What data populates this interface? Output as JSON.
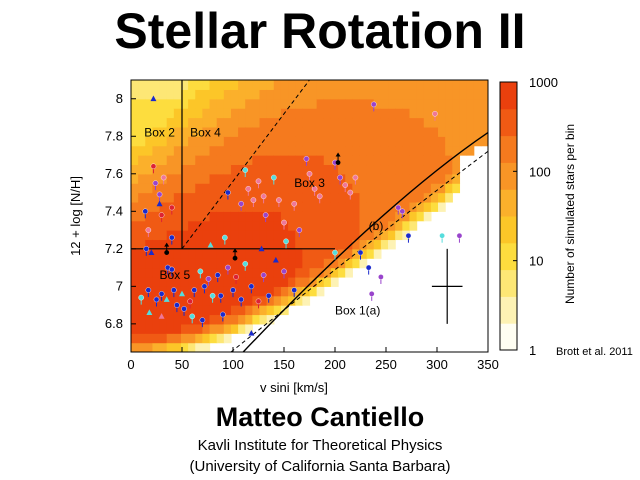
{
  "slide": {
    "title": "Stellar Rotation II",
    "author": "Matteo Cantiello",
    "institute": "Kavli Institute for Theoretical Physics",
    "affiliation": "(University of California Santa Barbara)",
    "credit": "Brott et al.  2011"
  },
  "chart_data": {
    "type": "heatmap",
    "title": "",
    "xlabel": "v sini [km/s]",
    "ylabel": "12 + log [N/H]",
    "xlim": [
      0,
      350
    ],
    "ylim": [
      6.65,
      8.1
    ],
    "x_ticks": [
      "0",
      "50",
      "100",
      "150",
      "200",
      "250",
      "300",
      "350"
    ],
    "y_ticks": [
      "6.8",
      "7",
      "7.2",
      "7.4",
      "7.6",
      "7.8",
      "8"
    ],
    "colorbar": {
      "label": "Number of simulated stars per bin",
      "scale": "log",
      "ticks": [
        "1",
        "10",
        "100",
        "1000"
      ],
      "colors": [
        "#fffef2",
        "#fdf2b4",
        "#fde775",
        "#fddd3e",
        "#fcc628",
        "#fbb02b",
        "#f89526",
        "#f57a1e",
        "#f05a14",
        "#ea400d"
      ]
    },
    "boxes": [
      {
        "label": "Box 1(a)",
        "x": 200,
        "y": 6.85
      },
      {
        "label": "Box 2",
        "x": 13,
        "y": 7.8
      },
      {
        "label": "Box 3",
        "x": 160,
        "y": 7.53
      },
      {
        "label": "Box 4",
        "x": 58,
        "y": 7.8
      },
      {
        "label": "Box 5",
        "x": 28,
        "y": 7.04
      }
    ],
    "annotation": {
      "label": "(b)",
      "x": 233,
      "y": 7.3
    },
    "error_bar": {
      "x": 310,
      "y": 7.0,
      "dx": 15,
      "dy": 0.2
    },
    "colors": {
      "blue": "#1a2acc",
      "purple": "#9944cc",
      "cyan": "#55dddd",
      "red": "#dd2233",
      "pink": "#ee7799"
    },
    "stars": [
      {
        "v": 22,
        "n": 7.64,
        "c": "red"
      },
      {
        "v": 32,
        "n": 7.58,
        "c": "pink"
      },
      {
        "v": 24,
        "n": 7.55,
        "c": "purple"
      },
      {
        "v": 28,
        "n": 7.49,
        "c": "purple"
      },
      {
        "v": 14,
        "n": 7.4,
        "c": "blue"
      },
      {
        "v": 30,
        "n": 7.38,
        "c": "red"
      },
      {
        "v": 40,
        "n": 7.42,
        "c": "red"
      },
      {
        "v": 17,
        "n": 7.3,
        "c": "pink"
      },
      {
        "v": 40,
        "n": 7.26,
        "c": "blue"
      },
      {
        "v": 15,
        "n": 7.2,
        "c": "blue"
      },
      {
        "v": 36,
        "n": 7.1,
        "c": "blue"
      },
      {
        "v": 40,
        "n": 7.09,
        "c": "blue"
      },
      {
        "v": 17,
        "n": 6.98,
        "c": "blue"
      },
      {
        "v": 10,
        "n": 6.94,
        "c": "cyan"
      },
      {
        "v": 25,
        "n": 6.93,
        "c": "blue"
      },
      {
        "v": 30,
        "n": 6.96,
        "c": "blue"
      },
      {
        "v": 42,
        "n": 6.98,
        "c": "blue"
      },
      {
        "v": 45,
        "n": 6.9,
        "c": "blue"
      },
      {
        "v": 52,
        "n": 6.88,
        "c": "blue"
      },
      {
        "v": 58,
        "n": 6.92,
        "c": "red"
      },
      {
        "v": 62,
        "n": 6.98,
        "c": "blue"
      },
      {
        "v": 68,
        "n": 7.08,
        "c": "cyan"
      },
      {
        "v": 72,
        "n": 7.0,
        "c": "blue"
      },
      {
        "v": 76,
        "n": 7.04,
        "c": "purple"
      },
      {
        "v": 80,
        "n": 6.95,
        "c": "cyan"
      },
      {
        "v": 85,
        "n": 7.06,
        "c": "blue"
      },
      {
        "v": 88,
        "n": 6.95,
        "c": "blue"
      },
      {
        "v": 95,
        "n": 7.1,
        "c": "purple"
      },
      {
        "v": 100,
        "n": 6.98,
        "c": "blue"
      },
      {
        "v": 103,
        "n": 7.05,
        "c": "red"
      },
      {
        "v": 108,
        "n": 6.93,
        "c": "blue"
      },
      {
        "v": 112,
        "n": 7.12,
        "c": "cyan"
      },
      {
        "v": 118,
        "n": 7.0,
        "c": "blue"
      },
      {
        "v": 125,
        "n": 6.92,
        "c": "red"
      },
      {
        "v": 130,
        "n": 7.06,
        "c": "purple"
      },
      {
        "v": 135,
        "n": 6.95,
        "c": "blue"
      },
      {
        "v": 60,
        "n": 6.84,
        "c": "cyan"
      },
      {
        "v": 70,
        "n": 6.82,
        "c": "blue"
      },
      {
        "v": 90,
        "n": 6.85,
        "c": "blue"
      },
      {
        "v": 95,
        "n": 7.5,
        "c": "blue"
      },
      {
        "v": 108,
        "n": 7.44,
        "c": "purple"
      },
      {
        "v": 115,
        "n": 7.52,
        "c": "pink"
      },
      {
        "v": 120,
        "n": 7.46,
        "c": "pink"
      },
      {
        "v": 125,
        "n": 7.56,
        "c": "pink"
      },
      {
        "v": 130,
        "n": 7.48,
        "c": "pink"
      },
      {
        "v": 132,
        "n": 7.38,
        "c": "purple"
      },
      {
        "v": 140,
        "n": 7.58,
        "c": "cyan"
      },
      {
        "v": 145,
        "n": 7.46,
        "c": "pink"
      },
      {
        "v": 150,
        "n": 7.34,
        "c": "pink"
      },
      {
        "v": 152,
        "n": 7.24,
        "c": "cyan"
      },
      {
        "v": 160,
        "n": 7.44,
        "c": "pink"
      },
      {
        "v": 165,
        "n": 7.3,
        "c": "purple"
      },
      {
        "v": 172,
        "n": 7.68,
        "c": "purple"
      },
      {
        "v": 175,
        "n": 7.6,
        "c": "pink"
      },
      {
        "v": 180,
        "n": 7.52,
        "c": "pink"
      },
      {
        "v": 185,
        "n": 7.48,
        "c": "pink"
      },
      {
        "v": 200,
        "n": 7.66,
        "c": "purple"
      },
      {
        "v": 205,
        "n": 7.58,
        "c": "purple"
      },
      {
        "v": 210,
        "n": 7.54,
        "c": "pink"
      },
      {
        "v": 215,
        "n": 7.5,
        "c": "pink"
      },
      {
        "v": 220,
        "n": 7.58,
        "c": "pink"
      },
      {
        "v": 238,
        "n": 7.97,
        "c": "purple"
      },
      {
        "v": 298,
        "n": 7.92,
        "c": "pink"
      },
      {
        "v": 262,
        "n": 7.42,
        "c": "purple"
      },
      {
        "v": 266,
        "n": 7.4,
        "c": "purple"
      },
      {
        "v": 225,
        "n": 7.18,
        "c": "blue"
      },
      {
        "v": 200,
        "n": 7.18,
        "c": "cyan"
      },
      {
        "v": 233,
        "n": 7.1,
        "c": "blue"
      },
      {
        "v": 236,
        "n": 6.96,
        "c": "purple"
      },
      {
        "v": 245,
        "n": 7.05,
        "c": "purple"
      },
      {
        "v": 272,
        "n": 7.27,
        "c": "blue"
      },
      {
        "v": 305,
        "n": 7.27,
        "c": "cyan"
      },
      {
        "v": 322,
        "n": 7.27,
        "c": "purple"
      },
      {
        "v": 160,
        "n": 6.98,
        "c": "blue"
      },
      {
        "v": 150,
        "n": 7.08,
        "c": "purple"
      },
      {
        "v": 112,
        "n": 7.62,
        "c": "cyan"
      },
      {
        "v": 92,
        "n": 7.26,
        "c": "cyan"
      }
    ],
    "triangles": [
      {
        "v": 22,
        "n": 8.0,
        "c": "blue"
      },
      {
        "v": 28,
        "n": 7.44,
        "c": "blue"
      },
      {
        "v": 20,
        "n": 7.18,
        "c": "blue"
      },
      {
        "v": 35,
        "n": 6.93,
        "c": "cyan"
      },
      {
        "v": 50,
        "n": 6.96,
        "c": "cyan"
      },
      {
        "v": 18,
        "n": 6.86,
        "c": "cyan"
      },
      {
        "v": 30,
        "n": 6.84,
        "c": "pink"
      },
      {
        "v": 128,
        "n": 7.2,
        "c": "blue"
      },
      {
        "v": 142,
        "n": 7.14,
        "c": "blue"
      },
      {
        "v": 78,
        "n": 7.22,
        "c": "cyan"
      },
      {
        "v": 118,
        "n": 6.75,
        "c": "blue"
      }
    ],
    "upper_limits": [
      {
        "v": 102,
        "n": 7.15
      },
      {
        "v": 203,
        "n": 7.66
      },
      {
        "v": 35,
        "n": 7.18
      }
    ]
  }
}
